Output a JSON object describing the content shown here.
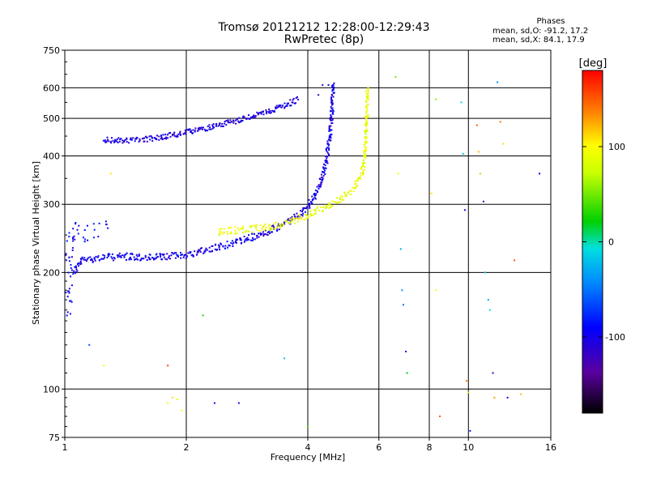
{
  "chart_data": {
    "type": "scatter",
    "title": "Tromsø 20121212 12:28:00-12:29:43",
    "subtitle": "RwPretec (8p)",
    "xlabel": "Frequency [MHz]",
    "ylabel": "Stationary phase Virtual Height [km]",
    "x_scale": "log",
    "y_scale": "log",
    "xlim": [
      1,
      16
    ],
    "ylim": [
      75,
      750
    ],
    "x_ticks": [
      1,
      2,
      4,
      6,
      8,
      10,
      16
    ],
    "y_ticks": [
      75,
      100,
      200,
      300,
      400,
      500,
      600,
      750
    ],
    "grid": true,
    "colorbar": {
      "label": "[deg]",
      "range": [
        -180,
        180
      ],
      "ticks": [
        -100,
        0,
        100
      ]
    },
    "stats": {
      "header": "Phases",
      "line_o": "mean, sd,O: -91.2, 17.2",
      "line_x": "mean, sd,X:  84.1, 17.9"
    },
    "traces": [
      {
        "name_hint": "O-mode F-layer lower",
        "phase": -100,
        "spread": 4,
        "density": 10,
        "points": [
          [
            1.05,
            200
          ],
          [
            1.1,
            215
          ],
          [
            1.2,
            218
          ],
          [
            1.4,
            220
          ],
          [
            1.6,
            218
          ],
          [
            1.8,
            220
          ],
          [
            2.0,
            222
          ],
          [
            2.3,
            230
          ],
          [
            2.6,
            238
          ],
          [
            3.0,
            248
          ],
          [
            3.4,
            262
          ],
          [
            3.8,
            282
          ],
          [
            4.1,
            305
          ],
          [
            4.3,
            340
          ],
          [
            4.45,
            390
          ],
          [
            4.55,
            460
          ],
          [
            4.6,
            540
          ],
          [
            4.62,
            620
          ]
        ]
      },
      {
        "name_hint": "O-mode F-layer upper",
        "phase": -105,
        "spread": 3,
        "density": 10,
        "points": [
          [
            1.25,
            440
          ],
          [
            1.4,
            438
          ],
          [
            1.6,
            442
          ],
          [
            1.8,
            450
          ],
          [
            2.0,
            460
          ],
          [
            2.3,
            475
          ],
          [
            2.7,
            495
          ],
          [
            3.1,
            515
          ],
          [
            3.5,
            540
          ],
          [
            3.8,
            560
          ]
        ]
      },
      {
        "name_hint": "X-mode F-layer",
        "phase": 90,
        "spread": 4,
        "density": 9,
        "points": [
          [
            2.4,
            255
          ],
          [
            2.8,
            258
          ],
          [
            3.2,
            262
          ],
          [
            3.6,
            270
          ],
          [
            4.0,
            282
          ],
          [
            4.4,
            295
          ],
          [
            4.8,
            310
          ],
          [
            5.2,
            330
          ],
          [
            5.45,
            360
          ],
          [
            5.55,
            420
          ],
          [
            5.6,
            500
          ],
          [
            5.62,
            600
          ]
        ]
      },
      {
        "name_hint": "low-frequency O echoes",
        "phase": -95,
        "spread": 10,
        "density": 4,
        "points": [
          [
            1.02,
            160
          ],
          [
            1.02,
            190
          ],
          [
            1.03,
            230
          ],
          [
            1.05,
            260
          ],
          [
            1.1,
            250
          ],
          [
            1.3,
            265
          ]
        ]
      }
    ],
    "scatter_points": [
      [
        1.8,
        92,
        95
      ],
      [
        1.85,
        95,
        110
      ],
      [
        1.9,
        94,
        80
      ],
      [
        1.95,
        88,
        100
      ],
      [
        2.35,
        92,
        -100
      ],
      [
        2.7,
        92,
        -110
      ],
      [
        6.6,
        640,
        50
      ],
      [
        6.7,
        360,
        95
      ],
      [
        6.8,
        230,
        -30
      ],
      [
        6.85,
        180,
        -40
      ],
      [
        6.9,
        165,
        -50
      ],
      [
        7.0,
        125,
        -110
      ],
      [
        7.05,
        110,
        20
      ],
      [
        8.1,
        320,
        110
      ],
      [
        8.3,
        180,
        95
      ],
      [
        8.5,
        85,
        150
      ],
      [
        8.3,
        560,
        60
      ],
      [
        9.6,
        550,
        -10
      ],
      [
        9.7,
        405,
        -20
      ],
      [
        9.8,
        290,
        -100
      ],
      [
        9.9,
        105,
        140
      ],
      [
        10.0,
        98,
        70
      ],
      [
        10.1,
        78,
        -80
      ],
      [
        10.5,
        480,
        150
      ],
      [
        10.6,
        410,
        120
      ],
      [
        10.7,
        360,
        60
      ],
      [
        10.9,
        305,
        -110
      ],
      [
        11.0,
        200,
        -20
      ],
      [
        11.2,
        170,
        -30
      ],
      [
        11.3,
        160,
        -10
      ],
      [
        11.5,
        110,
        -110
      ],
      [
        11.6,
        95,
        130
      ],
      [
        11.8,
        620,
        -40
      ],
      [
        12.0,
        490,
        140
      ],
      [
        12.2,
        430,
        110
      ],
      [
        12.5,
        95,
        -90
      ],
      [
        13.0,
        215,
        150
      ],
      [
        13.5,
        97,
        120
      ],
      [
        15.0,
        360,
        -100
      ],
      [
        1.3,
        360,
        110
      ],
      [
        1.25,
        115,
        90
      ],
      [
        1.15,
        130,
        -60
      ],
      [
        1.8,
        115,
        160
      ],
      [
        2.2,
        155,
        30
      ],
      [
        3.5,
        120,
        -20
      ],
      [
        4.0,
        80,
        40
      ],
      [
        4.25,
        575,
        -120
      ],
      [
        4.35,
        610,
        -115
      ],
      [
        4.5,
        610,
        -110
      ]
    ]
  }
}
